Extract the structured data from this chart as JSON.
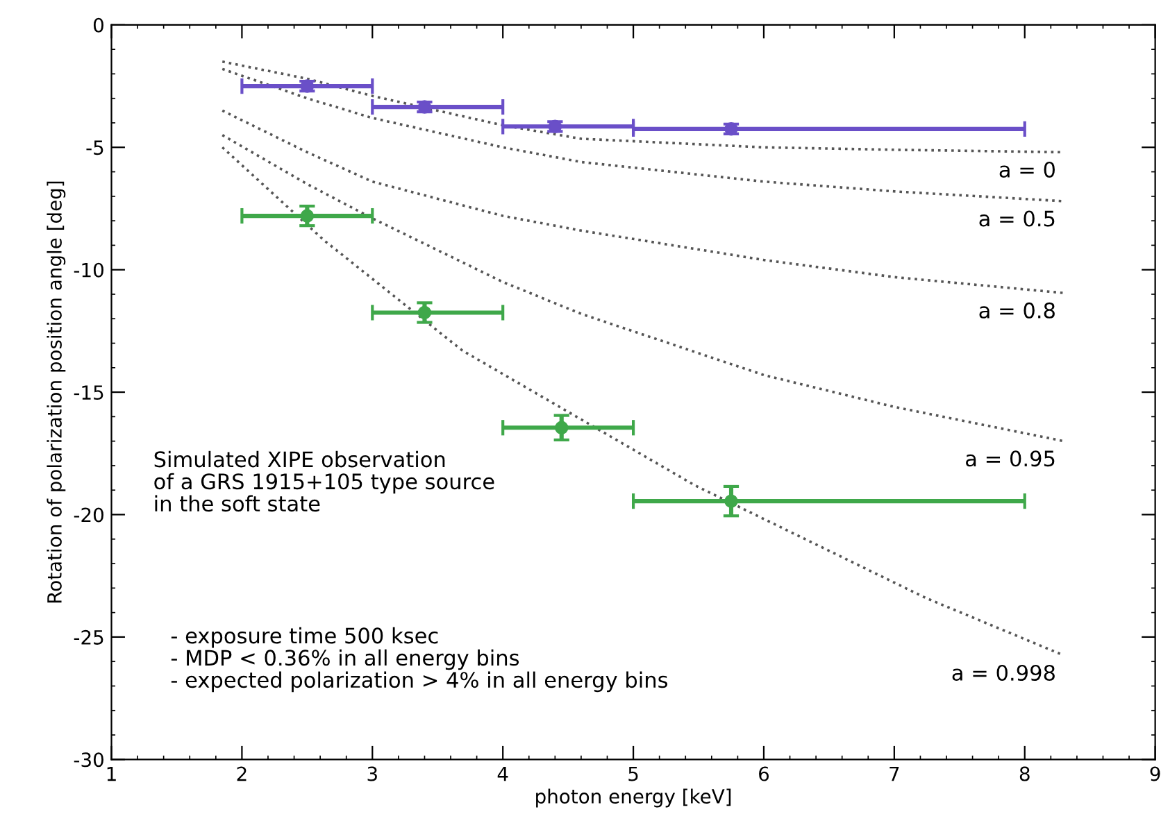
{
  "chart_data": {
    "type": "line",
    "xlabel": "photon energy [keV]",
    "ylabel": "Rotation of polarization position angle [deg]",
    "xlim": [
      1,
      9
    ],
    "xticks": [
      1,
      2,
      3,
      4,
      5,
      6,
      7,
      8,
      9
    ],
    "ylim": [
      -30,
      0
    ],
    "yticks": [
      0,
      -5,
      -10,
      -15,
      -20,
      -25,
      -30
    ],
    "grid": false,
    "legend": false,
    "series": [
      {
        "name": "a = 0",
        "line_style": "dotted",
        "marker": "none",
        "color": "#555555",
        "x": [
          1.85,
          2.5,
          3,
          4,
          4.6,
          6,
          7,
          8.3
        ],
        "values": [
          -1.5,
          -2.2,
          -2.9,
          -4.1,
          -4.65,
          -5.0,
          -5.1,
          -5.2
        ]
      },
      {
        "name": "a = 0.5",
        "line_style": "dotted",
        "marker": "none",
        "color": "#555555",
        "x": [
          1.85,
          2.5,
          3,
          4,
          4.6,
          6,
          7,
          8.3
        ],
        "values": [
          -1.8,
          -3.0,
          -3.8,
          -5.0,
          -5.6,
          -6.4,
          -6.8,
          -7.2
        ]
      },
      {
        "name": "a = 0.8",
        "line_style": "dotted",
        "marker": "none",
        "color": "#555555",
        "x": [
          1.85,
          2.5,
          3,
          4,
          4.6,
          6,
          7,
          8.3
        ],
        "values": [
          -3.5,
          -5.2,
          -6.4,
          -7.8,
          -8.4,
          -9.6,
          -10.3,
          -10.95
        ]
      },
      {
        "name": "a = 0.95",
        "line_style": "dotted",
        "marker": "none",
        "color": "#555555",
        "x": [
          1.85,
          2.5,
          3,
          4,
          4.6,
          6,
          7,
          8.3
        ],
        "values": [
          -4.5,
          -6.5,
          -7.9,
          -10.5,
          -11.8,
          -14.3,
          -15.6,
          -17.0
        ]
      },
      {
        "name": "a = 0.998",
        "line_style": "dotted",
        "marker": "none",
        "color": "#555555",
        "x": [
          1.85,
          2.63,
          3.69,
          5.47,
          7.24,
          8.3
        ],
        "values": [
          -5.0,
          -8.8,
          -13.3,
          -18.8,
          -23.4,
          -25.75
        ]
      },
      {
        "type": "scatter",
        "marker": "circle",
        "color": "#6a4fc8",
        "x": [
          2.5,
          3.4,
          4.4,
          5.75
        ],
        "values": [
          -2.5,
          -3.35,
          -4.15,
          -4.25
        ],
        "errors": [
          0.2,
          0.2,
          0.2,
          0.2
        ],
        "xerrors": [
          [
            2,
            3
          ],
          [
            3,
            4
          ],
          [
            4,
            5
          ],
          [
            5,
            8
          ]
        ]
      },
      {
        "type": "scatter",
        "marker": "circle",
        "color": "#3fa84a",
        "x": [
          2.5,
          3.4,
          4.45,
          5.75
        ],
        "values": [
          -7.8,
          -11.75,
          -16.45,
          -19.45
        ],
        "errors": [
          0.4,
          0.4,
          0.5,
          0.6
        ],
        "xerrors": [
          [
            2,
            3
          ],
          [
            3,
            4
          ],
          [
            4,
            5
          ],
          [
            5,
            8
          ]
        ]
      }
    ],
    "annotations": [
      "Simulated XIPE observation\nof a GRS 1915+105 type source\nin the soft state",
      " - exposure time 500 ksec\n - MDP < 0.36% in all energy bins\n - expected polarization > 4% in all energy bins"
    ]
  }
}
